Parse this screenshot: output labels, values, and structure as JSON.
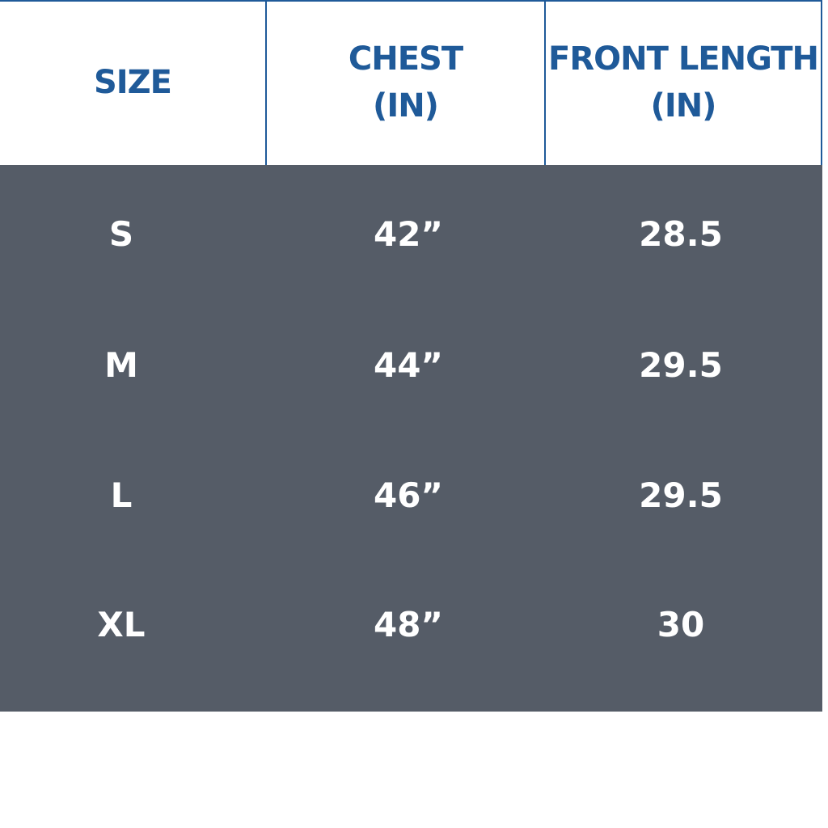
{
  "table": {
    "header": [
      [
        "SIZE"
      ],
      [
        "CHEST",
        "(IN)"
      ],
      [
        "FRONT LENGTH",
        "(IN)"
      ]
    ],
    "rows": [
      [
        "S",
        "42”",
        "28.5"
      ],
      [
        "M",
        "44”",
        "29.5"
      ],
      [
        "L",
        "46”",
        "29.5"
      ],
      [
        "XL",
        "48”",
        "30"
      ]
    ]
  }
}
